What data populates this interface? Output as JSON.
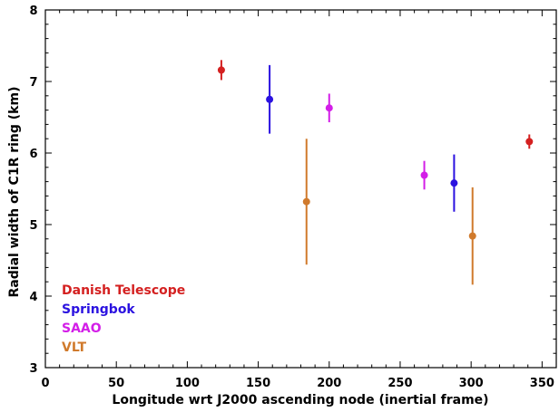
{
  "chart_data": {
    "type": "scatter",
    "xlabel": "Longitude wrt J2000 ascending node (inertial frame)",
    "ylabel": "Radial width of C1R ring (km)",
    "xlim": [
      0,
      360
    ],
    "ylim": [
      3,
      8
    ],
    "xticks": [
      0,
      50,
      100,
      150,
      200,
      250,
      300,
      350
    ],
    "yticks": [
      3,
      4,
      5,
      6,
      7,
      8
    ],
    "grid": false,
    "legend_position": "bottom-left",
    "series": [
      {
        "name": "Danish Telescope",
        "color": "#d42020",
        "points": [
          {
            "x": 124,
            "y": 7.16,
            "err": 0.14
          },
          {
            "x": 341,
            "y": 6.16,
            "err": 0.1
          }
        ]
      },
      {
        "name": "Springbok",
        "color": "#2b12e0",
        "points": [
          {
            "x": 158,
            "y": 6.75,
            "err": 0.48
          },
          {
            "x": 288,
            "y": 5.58,
            "err": 0.4
          }
        ]
      },
      {
        "name": "SAAO",
        "color": "#d31ee8",
        "points": [
          {
            "x": 200,
            "y": 6.63,
            "err": 0.2
          },
          {
            "x": 267,
            "y": 5.69,
            "err": 0.2
          }
        ]
      },
      {
        "name": "VLT",
        "color": "#d07a2c",
        "points": [
          {
            "x": 184,
            "y": 5.32,
            "err": 0.88
          },
          {
            "x": 301,
            "y": 4.84,
            "err": 0.68
          }
        ]
      }
    ]
  }
}
